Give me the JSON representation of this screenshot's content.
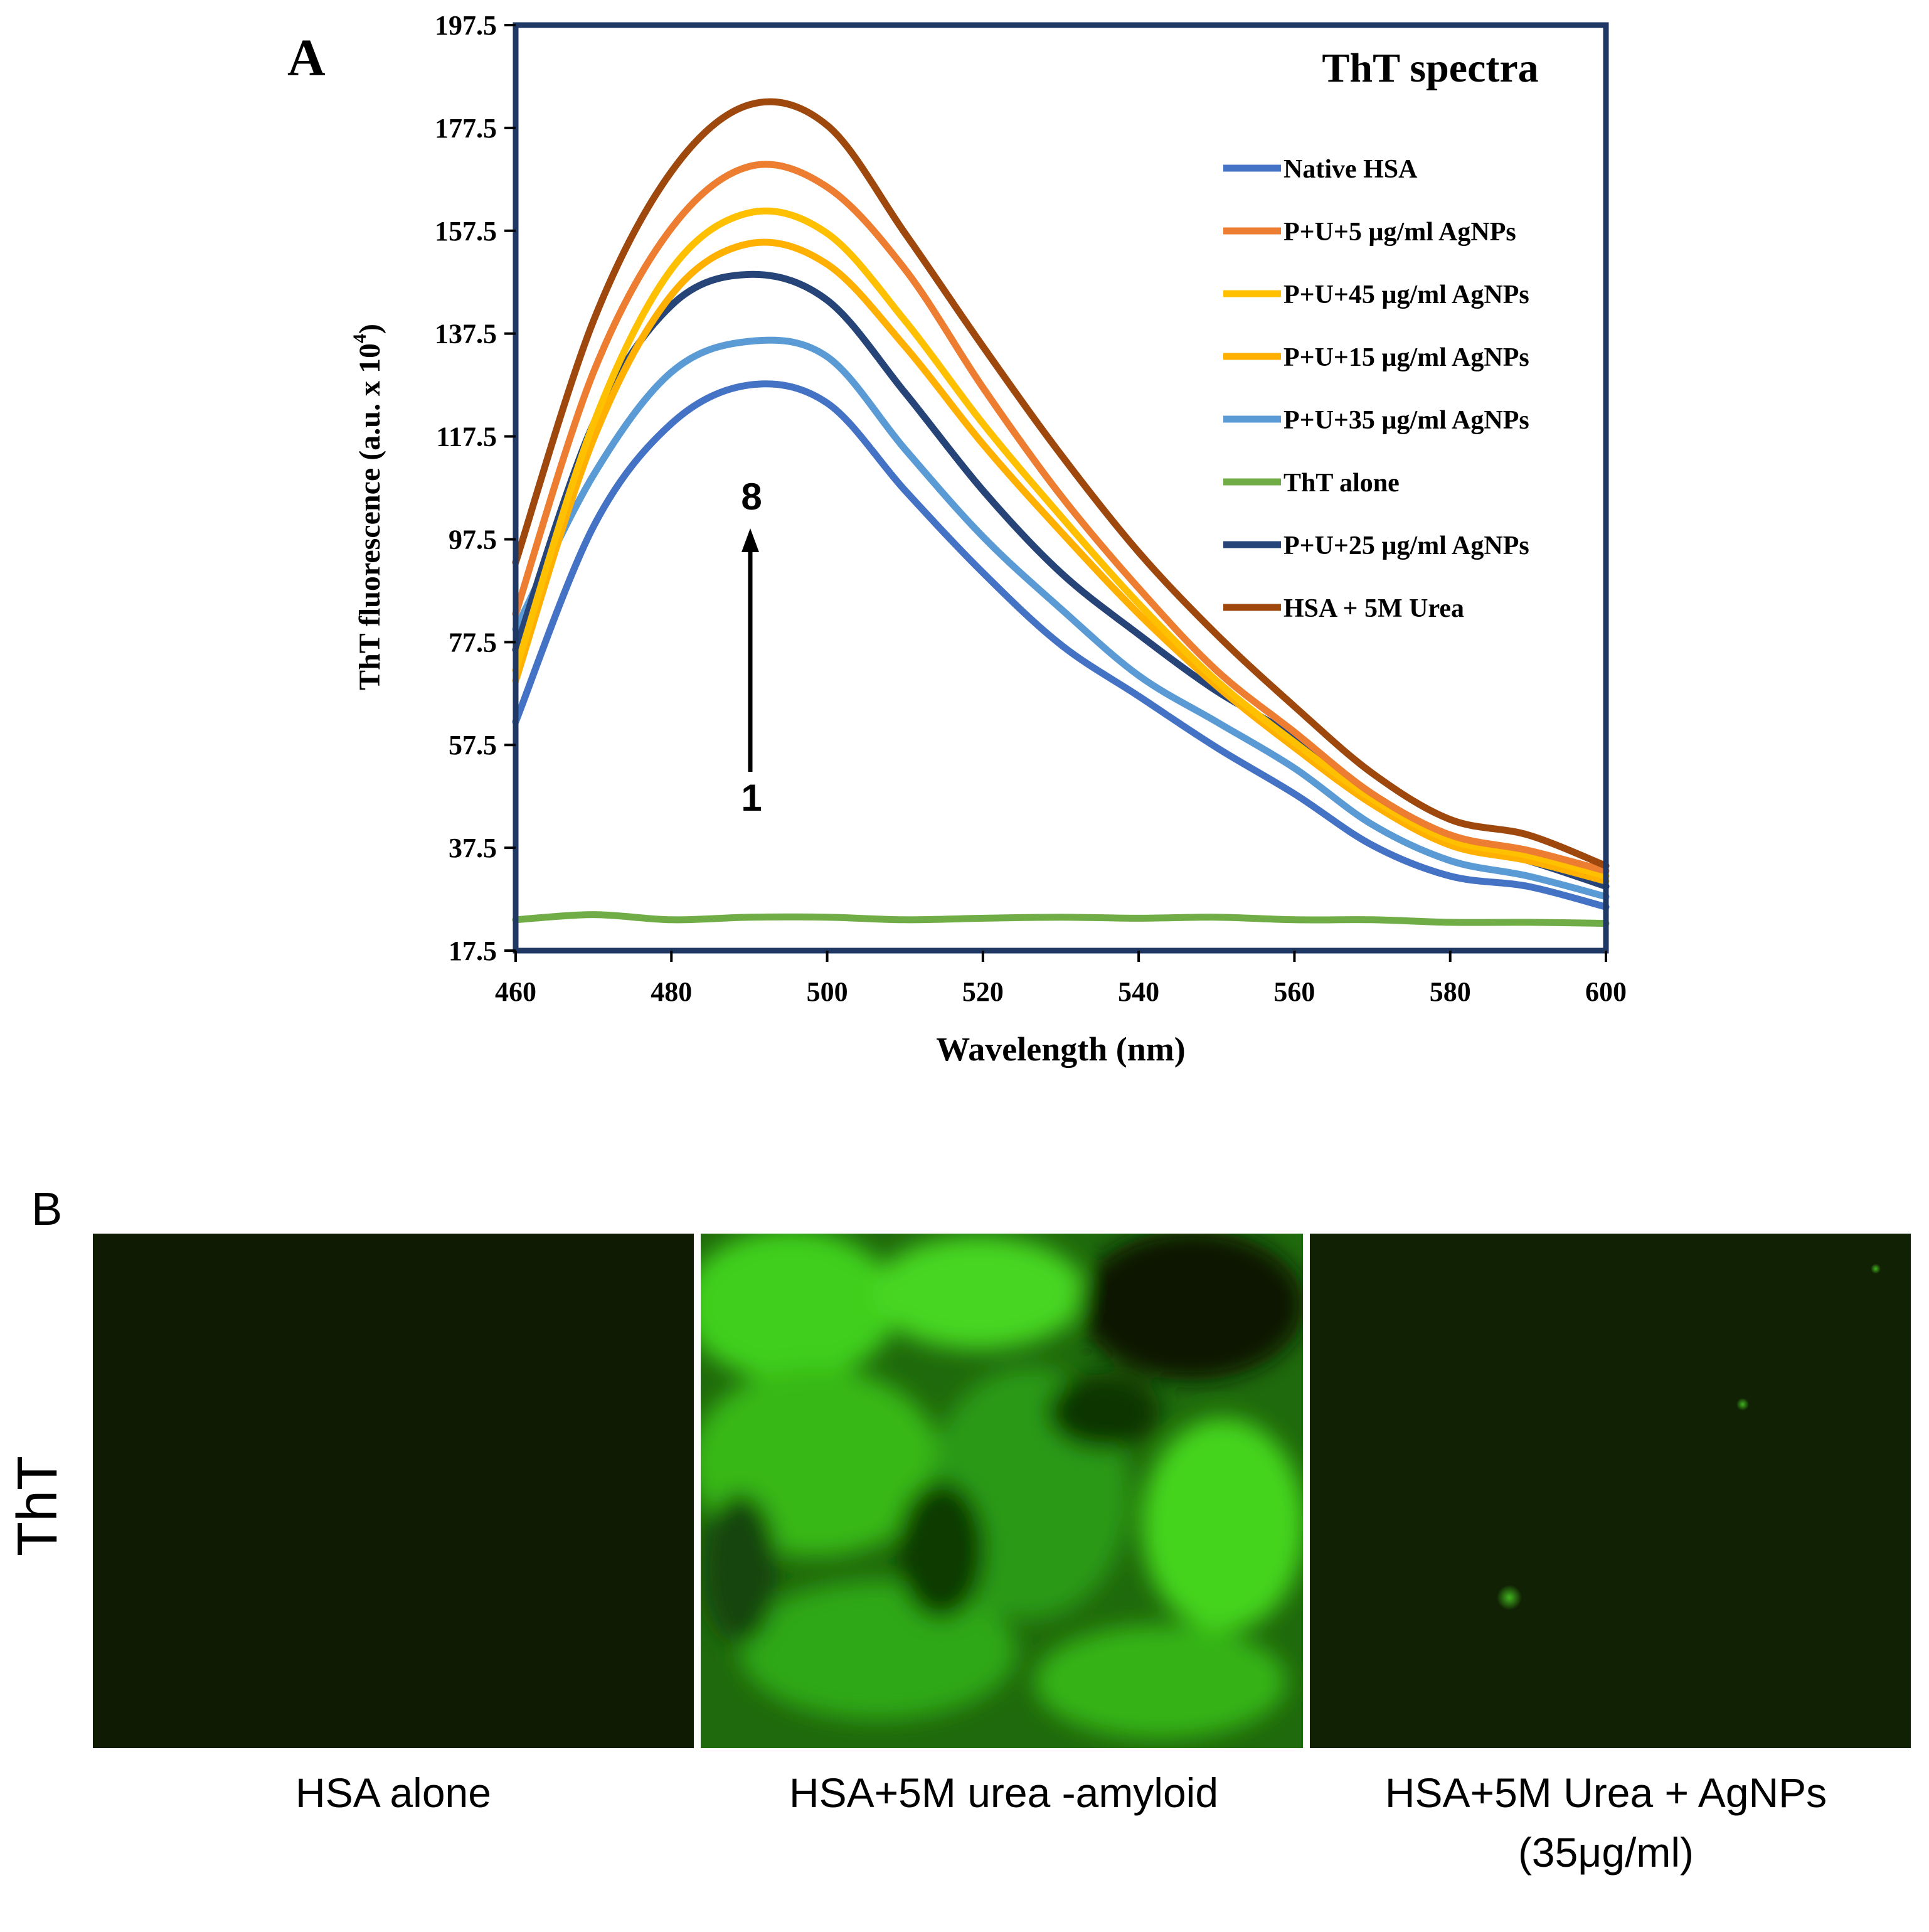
{
  "panel_a": {
    "label": "A",
    "arrow_top": "8",
    "arrow_bottom": "1"
  },
  "panel_b": {
    "label": "B",
    "row_label": "ThT",
    "images": [
      {
        "caption": "HSA alone",
        "caption_line2": "",
        "kind": "dark-background"
      },
      {
        "caption": "HSA+5M urea -amyloid",
        "caption_line2": "",
        "kind": "bright-fibrils"
      },
      {
        "caption": "HSA+5M Urea + AgNPs",
        "caption_line2": "(35μg/ml)",
        "kind": "dark-sparse-spots"
      }
    ]
  },
  "colors": {
    "frame": "#1F3864",
    "native_hsa": "#4472C4",
    "agnp_5": "#ED7D31",
    "agnp_45": "#FFC000",
    "agnp_15": "#FFB000",
    "agnp_35": "#5B9BD5",
    "tht_alone": "#70AD47",
    "agnp_25": "#264478",
    "urea": "#9E480E",
    "fluorescence_green": "#3cc21a"
  },
  "chart_data": {
    "type": "line",
    "title": "ThT spectra",
    "xlabel": "Wavelength (nm)",
    "ylabel": "ThT fluorescence (a.u. x 10",
    "ylabel_sup": "4",
    "ylabel_close": ")",
    "xlim": [
      460,
      600
    ],
    "ylim": [
      17.5,
      197.5
    ],
    "xticks": [
      "460",
      "480",
      "500",
      "520",
      "540",
      "560",
      "580",
      "600"
    ],
    "yticks": [
      "17.5",
      "37.5",
      "57.5",
      "77.5",
      "97.5",
      "117.5",
      "137.5",
      "157.5",
      "177.5",
      "197.5"
    ],
    "grid": false,
    "legend_position": "top-right",
    "x": [
      460,
      470,
      480,
      490,
      500,
      510,
      520,
      530,
      540,
      550,
      560,
      570,
      580,
      590,
      600
    ],
    "series": [
      {
        "name": "Native HSA",
        "color": "#4472C4",
        "values": [
          62,
          100,
          120,
          127.5,
          124,
          107,
          91,
          77,
          67,
          57,
          48,
          38,
          32,
          30,
          26
        ]
      },
      {
        "name": "P+U+5 µg/ml AgNPs",
        "color": "#ED7D31",
        "values": [
          83,
          130,
          158,
          170,
          166,
          150,
          127,
          106,
          88,
          72,
          60,
          48,
          40,
          37,
          33
        ]
      },
      {
        "name": "P+U+45 µg/ml AgNPs",
        "color": "#FFC000",
        "values": [
          72,
          120,
          150,
          161,
          157,
          140,
          120,
          102,
          85,
          70,
          58,
          47,
          39,
          36,
          32
        ]
      },
      {
        "name": "P+U+15 µg/ml AgNPs",
        "color": "#FFB000",
        "values": [
          70,
          117,
          145,
          155,
          151,
          135,
          116,
          99,
          83,
          69,
          57,
          46,
          38,
          35,
          31
        ]
      },
      {
        "name": "P+U+35 µg/ml AgNPs",
        "color": "#5B9BD5",
        "values": [
          80,
          110,
          130,
          136,
          133,
          115,
          98,
          84,
          71,
          62,
          53,
          42,
          35,
          32,
          28
        ]
      },
      {
        "name": "ThT alone",
        "color": "#70AD47",
        "values": [
          23.5,
          24.5,
          23.5,
          24,
          24,
          23.5,
          23.8,
          24,
          23.8,
          24,
          23.5,
          23.5,
          23,
          23,
          22.8
        ]
      },
      {
        "name": "P+U+25 µg/ml AgNPs",
        "color": "#264478",
        "values": [
          76,
          120,
          143,
          149,
          144,
          126,
          107,
          91,
          79,
          68,
          59,
          47,
          39,
          35,
          30
        ]
      },
      {
        "name": "HSA + 5M Urea",
        "color": "#9E480E",
        "values": [
          93,
          140,
          169,
          182,
          178,
          157,
          135,
          114,
          95,
          79,
          65,
          52,
          43,
          40,
          34
        ]
      }
    ]
  }
}
